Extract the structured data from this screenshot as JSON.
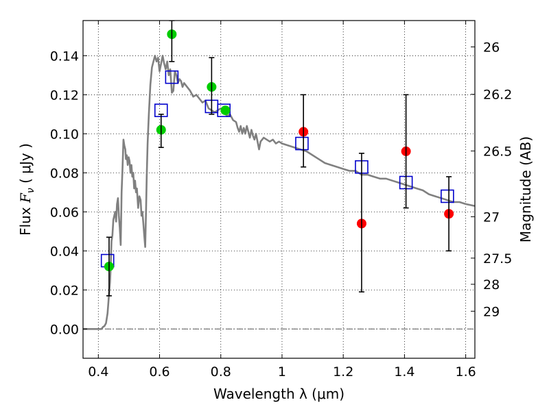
{
  "chart_data": {
    "type": "scatter",
    "xlabel": "Wavelength  λ (μm)",
    "ylabel": "Flux  F_ν  ( μJy )",
    "ylabel_parts": {
      "prefix": "Flux  ",
      "sym": "F",
      "sub": "ν",
      "suffix": "  ( μJy )"
    },
    "y2label": "Magnitude (AB)",
    "xlim": [
      0.35,
      1.63
    ],
    "ylim": [
      -0.015,
      0.158
    ],
    "grid": true,
    "x_ticks": [
      0.4,
      0.6,
      0.8,
      1.0,
      1.2,
      1.4,
      1.6
    ],
    "x_tick_labels": [
      "0.4",
      "0.6",
      "0.8",
      "1",
      "1.2",
      "1.4",
      "1.6"
    ],
    "y_ticks": [
      0.0,
      0.02,
      0.04,
      0.06,
      0.08,
      0.1,
      0.12,
      0.14
    ],
    "y_tick_labels": [
      "0.00",
      "0.02",
      "0.04",
      "0.06",
      "0.08",
      "0.10",
      "0.12",
      "0.14"
    ],
    "y2_ticks": [
      {
        "flux": 0.1445,
        "label": "26"
      },
      {
        "flux": 0.1202,
        "label": "26.2"
      },
      {
        "flux": 0.0912,
        "label": "26.5"
      },
      {
        "flux": 0.0575,
        "label": "27"
      },
      {
        "flux": 0.0363,
        "label": "27.5"
      },
      {
        "flux": 0.0229,
        "label": "28"
      },
      {
        "flux": 0.0091,
        "label": "29"
      }
    ],
    "series": [
      {
        "kind": "line",
        "color": "#808080",
        "points": [
          [
            0.35,
            0.0
          ],
          [
            0.41,
            0.0
          ],
          [
            0.415,
            0.001
          ],
          [
            0.42,
            0.0015
          ],
          [
            0.425,
            0.003
          ],
          [
            0.43,
            0.008
          ],
          [
            0.432,
            0.012
          ],
          [
            0.435,
            0.018
          ],
          [
            0.438,
            0.024
          ],
          [
            0.44,
            0.03
          ],
          [
            0.443,
            0.045
          ],
          [
            0.446,
            0.048
          ],
          [
            0.449,
            0.056
          ],
          [
            0.452,
            0.058
          ],
          [
            0.455,
            0.06
          ],
          [
            0.458,
            0.055
          ],
          [
            0.461,
            0.064
          ],
          [
            0.464,
            0.067
          ],
          [
            0.467,
            0.058
          ],
          [
            0.47,
            0.052
          ],
          [
            0.473,
            0.043
          ],
          [
            0.476,
            0.07
          ],
          [
            0.479,
            0.082
          ],
          [
            0.482,
            0.097
          ],
          [
            0.485,
            0.094
          ],
          [
            0.488,
            0.092
          ],
          [
            0.49,
            0.087
          ],
          [
            0.493,
            0.089
          ],
          [
            0.496,
            0.084
          ],
          [
            0.499,
            0.088
          ],
          [
            0.502,
            0.086
          ],
          [
            0.505,
            0.08
          ],
          [
            0.508,
            0.084
          ],
          [
            0.511,
            0.078
          ],
          [
            0.514,
            0.08
          ],
          [
            0.517,
            0.072
          ],
          [
            0.52,
            0.076
          ],
          [
            0.523,
            0.07
          ],
          [
            0.526,
            0.072
          ],
          [
            0.53,
            0.062
          ],
          [
            0.534,
            0.068
          ],
          [
            0.538,
            0.066
          ],
          [
            0.541,
            0.058
          ],
          [
            0.544,
            0.06
          ],
          [
            0.547,
            0.054
          ],
          [
            0.55,
            0.048
          ],
          [
            0.553,
            0.042
          ],
          [
            0.556,
            0.062
          ],
          [
            0.558,
            0.078
          ],
          [
            0.561,
            0.095
          ],
          [
            0.565,
            0.11
          ],
          [
            0.57,
            0.125
          ],
          [
            0.575,
            0.134
          ],
          [
            0.58,
            0.137
          ],
          [
            0.585,
            0.14
          ],
          [
            0.59,
            0.137
          ],
          [
            0.595,
            0.139
          ],
          [
            0.6,
            0.132
          ],
          [
            0.605,
            0.136
          ],
          [
            0.61,
            0.14
          ],
          [
            0.615,
            0.136
          ],
          [
            0.62,
            0.133
          ],
          [
            0.625,
            0.137
          ],
          [
            0.63,
            0.13
          ],
          [
            0.635,
            0.133
          ],
          [
            0.64,
            0.121
          ],
          [
            0.645,
            0.122
          ],
          [
            0.65,
            0.132
          ],
          [
            0.655,
            0.13
          ],
          [
            0.66,
            0.126
          ],
          [
            0.665,
            0.128
          ],
          [
            0.67,
            0.127
          ],
          [
            0.675,
            0.124
          ],
          [
            0.68,
            0.126
          ],
          [
            0.69,
            0.124
          ],
          [
            0.7,
            0.122
          ],
          [
            0.71,
            0.119
          ],
          [
            0.72,
            0.12
          ],
          [
            0.73,
            0.118
          ],
          [
            0.74,
            0.116
          ],
          [
            0.75,
            0.117
          ],
          [
            0.76,
            0.113
          ],
          [
            0.77,
            0.112
          ],
          [
            0.78,
            0.111
          ],
          [
            0.79,
            0.112
          ],
          [
            0.8,
            0.113
          ],
          [
            0.81,
            0.112
          ],
          [
            0.82,
            0.109
          ],
          [
            0.83,
            0.11
          ],
          [
            0.84,
            0.107
          ],
          [
            0.85,
            0.106
          ],
          [
            0.855,
            0.103
          ],
          [
            0.86,
            0.101
          ],
          [
            0.865,
            0.104
          ],
          [
            0.87,
            0.1
          ],
          [
            0.875,
            0.103
          ],
          [
            0.88,
            0.1
          ],
          [
            0.885,
            0.104
          ],
          [
            0.89,
            0.101
          ],
          [
            0.895,
            0.098
          ],
          [
            0.9,
            0.102
          ],
          [
            0.905,
            0.099
          ],
          [
            0.91,
            0.097
          ],
          [
            0.915,
            0.1
          ],
          [
            0.92,
            0.096
          ],
          [
            0.925,
            0.092
          ],
          [
            0.93,
            0.096
          ],
          [
            0.935,
            0.097
          ],
          [
            0.94,
            0.098
          ],
          [
            0.95,
            0.097
          ],
          [
            0.96,
            0.096
          ],
          [
            0.97,
            0.097
          ],
          [
            0.98,
            0.095
          ],
          [
            0.99,
            0.096
          ],
          [
            1.0,
            0.095
          ],
          [
            1.02,
            0.094
          ],
          [
            1.04,
            0.093
          ],
          [
            1.06,
            0.092
          ],
          [
            1.08,
            0.091
          ],
          [
            1.1,
            0.089
          ],
          [
            1.12,
            0.087
          ],
          [
            1.14,
            0.085
          ],
          [
            1.16,
            0.084
          ],
          [
            1.18,
            0.083
          ],
          [
            1.2,
            0.082
          ],
          [
            1.22,
            0.081
          ],
          [
            1.24,
            0.081
          ],
          [
            1.26,
            0.079
          ],
          [
            1.28,
            0.079
          ],
          [
            1.3,
            0.078
          ],
          [
            1.32,
            0.077
          ],
          [
            1.34,
            0.077
          ],
          [
            1.36,
            0.076
          ],
          [
            1.38,
            0.075
          ],
          [
            1.4,
            0.074
          ],
          [
            1.42,
            0.073
          ],
          [
            1.44,
            0.072
          ],
          [
            1.46,
            0.071
          ],
          [
            1.48,
            0.069
          ],
          [
            1.5,
            0.068
          ],
          [
            1.52,
            0.067
          ],
          [
            1.54,
            0.066
          ],
          [
            1.56,
            0.065
          ],
          [
            1.58,
            0.065
          ],
          [
            1.6,
            0.064
          ],
          [
            1.63,
            0.063
          ]
        ]
      },
      {
        "kind": "markers",
        "marker": "open-square",
        "color": "#0000cc",
        "points": [
          [
            0.43,
            0.035
          ],
          [
            0.605,
            0.112
          ],
          [
            0.64,
            0.129
          ],
          [
            0.77,
            0.114
          ],
          [
            0.81,
            0.112
          ],
          [
            1.065,
            0.095
          ],
          [
            1.26,
            0.083
          ],
          [
            1.405,
            0.075
          ],
          [
            1.54,
            0.068
          ]
        ]
      },
      {
        "kind": "markers",
        "marker": "circle",
        "color": "#00cc00",
        "points": [
          [
            0.435,
            0.032
          ],
          [
            0.605,
            0.102
          ],
          [
            0.64,
            0.151
          ],
          [
            0.77,
            0.124
          ],
          [
            0.815,
            0.112
          ]
        ]
      },
      {
        "kind": "markers",
        "marker": "circle",
        "color": "#ff0000",
        "points": [
          [
            1.07,
            0.101
          ],
          [
            1.26,
            0.054
          ],
          [
            1.405,
            0.091
          ],
          [
            1.545,
            0.059
          ]
        ]
      },
      {
        "kind": "errorbars",
        "color": "#000000",
        "bars": [
          {
            "x": 0.435,
            "low": 0.017,
            "high": 0.047
          },
          {
            "x": 0.605,
            "low": 0.093,
            "high": 0.11
          },
          {
            "x": 0.64,
            "low": 0.137,
            "high": 0.158
          },
          {
            "x": 0.77,
            "low": 0.11,
            "high": 0.139
          },
          {
            "x": 1.07,
            "low": 0.083,
            "high": 0.12
          },
          {
            "x": 1.26,
            "low": 0.019,
            "high": 0.09
          },
          {
            "x": 1.405,
            "low": 0.062,
            "high": 0.12
          },
          {
            "x": 1.545,
            "low": 0.04,
            "high": 0.078
          }
        ]
      }
    ]
  }
}
